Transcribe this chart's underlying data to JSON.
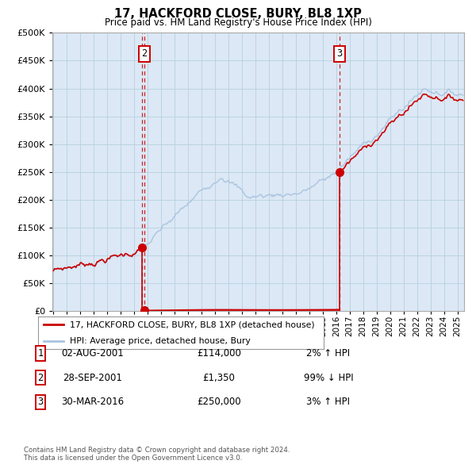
{
  "title": "17, HACKFORD CLOSE, BURY, BL8 1XP",
  "subtitle": "Price paid vs. HM Land Registry's House Price Index (HPI)",
  "legend_line1": "17, HACKFORD CLOSE, BURY, BL8 1XP (detached house)",
  "legend_line2": "HPI: Average price, detached house, Bury",
  "transactions": [
    {
      "num": 1,
      "date": "02-AUG-2001",
      "price": "£114,000",
      "change": "2% ↑ HPI",
      "year": 2001.59,
      "value": 114000
    },
    {
      "num": 2,
      "date": "28-SEP-2001",
      "price": "£1,350",
      "change": "99% ↓ HPI",
      "year": 2001.75,
      "value": 1350
    },
    {
      "num": 3,
      "date": "30-MAR-2016",
      "price": "£250,000",
      "change": "3% ↑ HPI",
      "year": 2016.25,
      "value": 250000
    }
  ],
  "footnote1": "Contains HM Land Registry data © Crown copyright and database right 2024.",
  "footnote2": "This data is licensed under the Open Government Licence v3.0.",
  "hpi_color": "#aac4e0",
  "price_color": "#cc0000",
  "background_color": "#ffffff",
  "plot_bg_color": "#dce8f5",
  "grid_color": "#b8cfe0",
  "ylim_max": 500000,
  "xlim_start": 1994.92,
  "xlim_end": 2025.5
}
